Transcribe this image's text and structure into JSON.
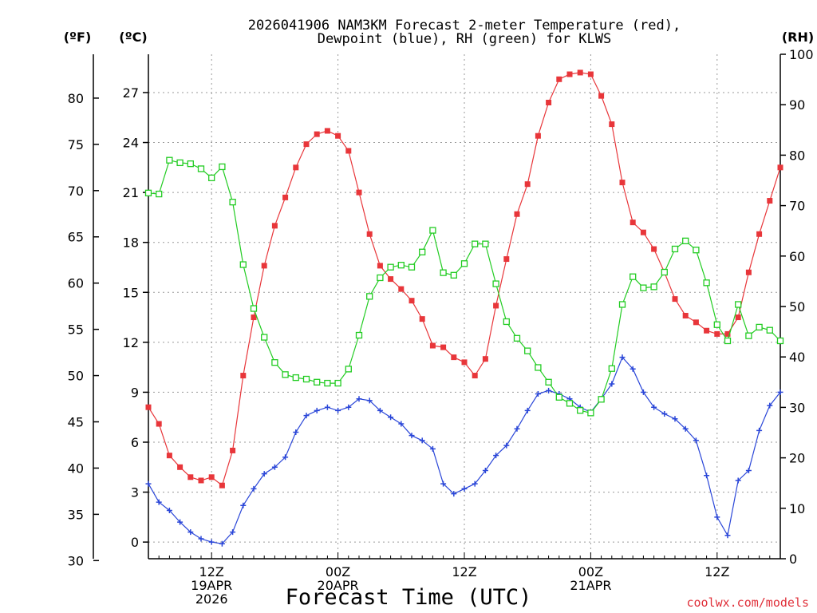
{
  "chart_data": {
    "type": "line",
    "title": "2026041906 NAM3KM Forecast 2-meter Temperature (red),",
    "subtitle": "Dewpoint (blue), RH (green) for KLWS",
    "xlabel": "Forecast Time (UTC)",
    "credit": "coolwx.com/models",
    "units": {
      "fahrenheit": "(ºF)",
      "celsius": "(ºC)",
      "rh": "(RH)"
    },
    "x_range": [
      7,
      67
    ],
    "x_ticks": [
      {
        "x": 13,
        "lines": [
          "12Z",
          "19APR",
          "2026"
        ]
      },
      {
        "x": 25,
        "lines": [
          "00Z",
          "20APR"
        ]
      },
      {
        "x": 37,
        "lines": [
          "12Z"
        ]
      },
      {
        "x": 49,
        "lines": [
          "00Z",
          "21APR"
        ]
      },
      {
        "x": 61,
        "lines": [
          "12Z"
        ]
      }
    ],
    "celsius_axis": {
      "range": [
        -1.0,
        29.3
      ],
      "ticks": [
        0,
        3,
        6,
        9,
        12,
        15,
        18,
        21,
        24,
        27
      ]
    },
    "fahrenheit_axis": {
      "range": [
        30.2,
        84.74
      ],
      "ticks": [
        30,
        35,
        40,
        45,
        50,
        55,
        60,
        65,
        70,
        75,
        80
      ]
    },
    "rh_axis": {
      "range": [
        0,
        100
      ],
      "ticks": [
        0,
        10,
        20,
        30,
        40,
        50,
        60,
        70,
        80,
        90,
        100
      ]
    },
    "series": [
      {
        "name": "Temperature",
        "axis": "celsius",
        "color": "#e8363a",
        "marker": "filled-square",
        "x": [
          7,
          8,
          9,
          10,
          11,
          12,
          13,
          14,
          15,
          16,
          17,
          18,
          19,
          20,
          21,
          22,
          23,
          24,
          25,
          26,
          27,
          28,
          29,
          30,
          31,
          32,
          33,
          34,
          35,
          36,
          37,
          38,
          39,
          40,
          41,
          42,
          43,
          44,
          45,
          46,
          47,
          48,
          49,
          50,
          51,
          52,
          53,
          54,
          55,
          56,
          57,
          58,
          59,
          60,
          61,
          62,
          63,
          64,
          65,
          66,
          67
        ],
        "values": [
          8.1,
          7.1,
          5.2,
          4.5,
          3.9,
          3.7,
          3.9,
          3.4,
          5.5,
          10.0,
          13.5,
          16.6,
          19.0,
          20.7,
          22.5,
          23.9,
          24.5,
          24.7,
          24.4,
          23.5,
          21.0,
          18.5,
          16.6,
          15.8,
          15.2,
          14.5,
          13.4,
          11.8,
          11.7,
          11.1,
          10.8,
          10.0,
          11.0,
          14.2,
          17.0,
          19.7,
          21.5,
          24.4,
          26.4,
          27.8,
          28.1,
          28.2,
          28.1,
          26.8,
          25.1,
          21.6,
          19.2,
          18.6,
          17.6,
          16.2,
          14.6,
          13.6,
          13.2,
          12.7,
          12.5,
          12.5,
          13.5,
          16.2,
          18.5,
          20.5,
          22.5
        ]
      },
      {
        "name": "Dewpoint",
        "axis": "celsius",
        "color": "#2a46d8",
        "marker": "plus",
        "x": [
          7,
          8,
          9,
          10,
          11,
          12,
          13,
          14,
          15,
          16,
          17,
          18,
          19,
          20,
          21,
          22,
          23,
          24,
          25,
          26,
          27,
          28,
          29,
          30,
          31,
          32,
          33,
          34,
          35,
          36,
          37,
          38,
          39,
          40,
          41,
          42,
          43,
          44,
          45,
          46,
          47,
          48,
          49,
          50,
          51,
          52,
          53,
          54,
          55,
          56,
          57,
          58,
          59,
          60,
          61,
          62,
          63,
          64,
          65,
          66,
          67
        ],
        "values": [
          3.5,
          2.4,
          1.9,
          1.2,
          0.6,
          0.2,
          0.0,
          -0.1,
          0.6,
          2.2,
          3.2,
          4.1,
          4.5,
          5.1,
          6.6,
          7.6,
          7.9,
          8.1,
          7.9,
          8.1,
          8.6,
          8.5,
          7.9,
          7.5,
          7.1,
          6.4,
          6.1,
          5.6,
          3.5,
          2.9,
          3.2,
          3.5,
          4.3,
          5.2,
          5.8,
          6.8,
          7.9,
          8.9,
          9.1,
          8.9,
          8.6,
          8.1,
          7.8,
          8.6,
          9.5,
          11.1,
          10.4,
          9.0,
          8.1,
          7.7,
          7.4,
          6.8,
          6.1,
          4.0,
          1.5,
          0.4,
          3.7,
          4.3,
          6.7,
          8.2,
          9.0
        ]
      },
      {
        "name": "RH",
        "axis": "rh",
        "color": "#22cc22",
        "marker": "open-square",
        "x": [
          7,
          8,
          9,
          10,
          11,
          12,
          13,
          14,
          15,
          16,
          17,
          18,
          19,
          20,
          21,
          22,
          23,
          24,
          25,
          26,
          27,
          28,
          29,
          30,
          31,
          32,
          33,
          34,
          35,
          36,
          37,
          38,
          39,
          40,
          41,
          42,
          43,
          44,
          45,
          46,
          47,
          48,
          49,
          50,
          51,
          52,
          53,
          54,
          55,
          56,
          57,
          58,
          59,
          60,
          61,
          62,
          63,
          64,
          65,
          66,
          67
        ],
        "values": [
          72.5,
          72.3,
          79.0,
          78.5,
          78.3,
          77.3,
          75.5,
          77.7,
          70.7,
          58.3,
          49.6,
          43.9,
          38.9,
          36.5,
          35.9,
          35.6,
          35.0,
          34.8,
          34.8,
          37.6,
          44.3,
          52.0,
          55.7,
          57.8,
          58.2,
          57.8,
          60.8,
          65.1,
          56.7,
          56.2,
          58.5,
          62.4,
          62.4,
          54.5,
          47.0,
          43.7,
          41.2,
          37.9,
          35.0,
          32.0,
          30.8,
          29.4,
          28.9,
          31.6,
          37.7,
          50.4,
          55.9,
          53.7,
          53.9,
          56.8,
          61.4,
          63.0,
          61.2,
          54.7,
          46.4,
          43.2,
          50.4,
          44.2,
          45.9,
          45.3,
          43.2
        ]
      }
    ]
  }
}
